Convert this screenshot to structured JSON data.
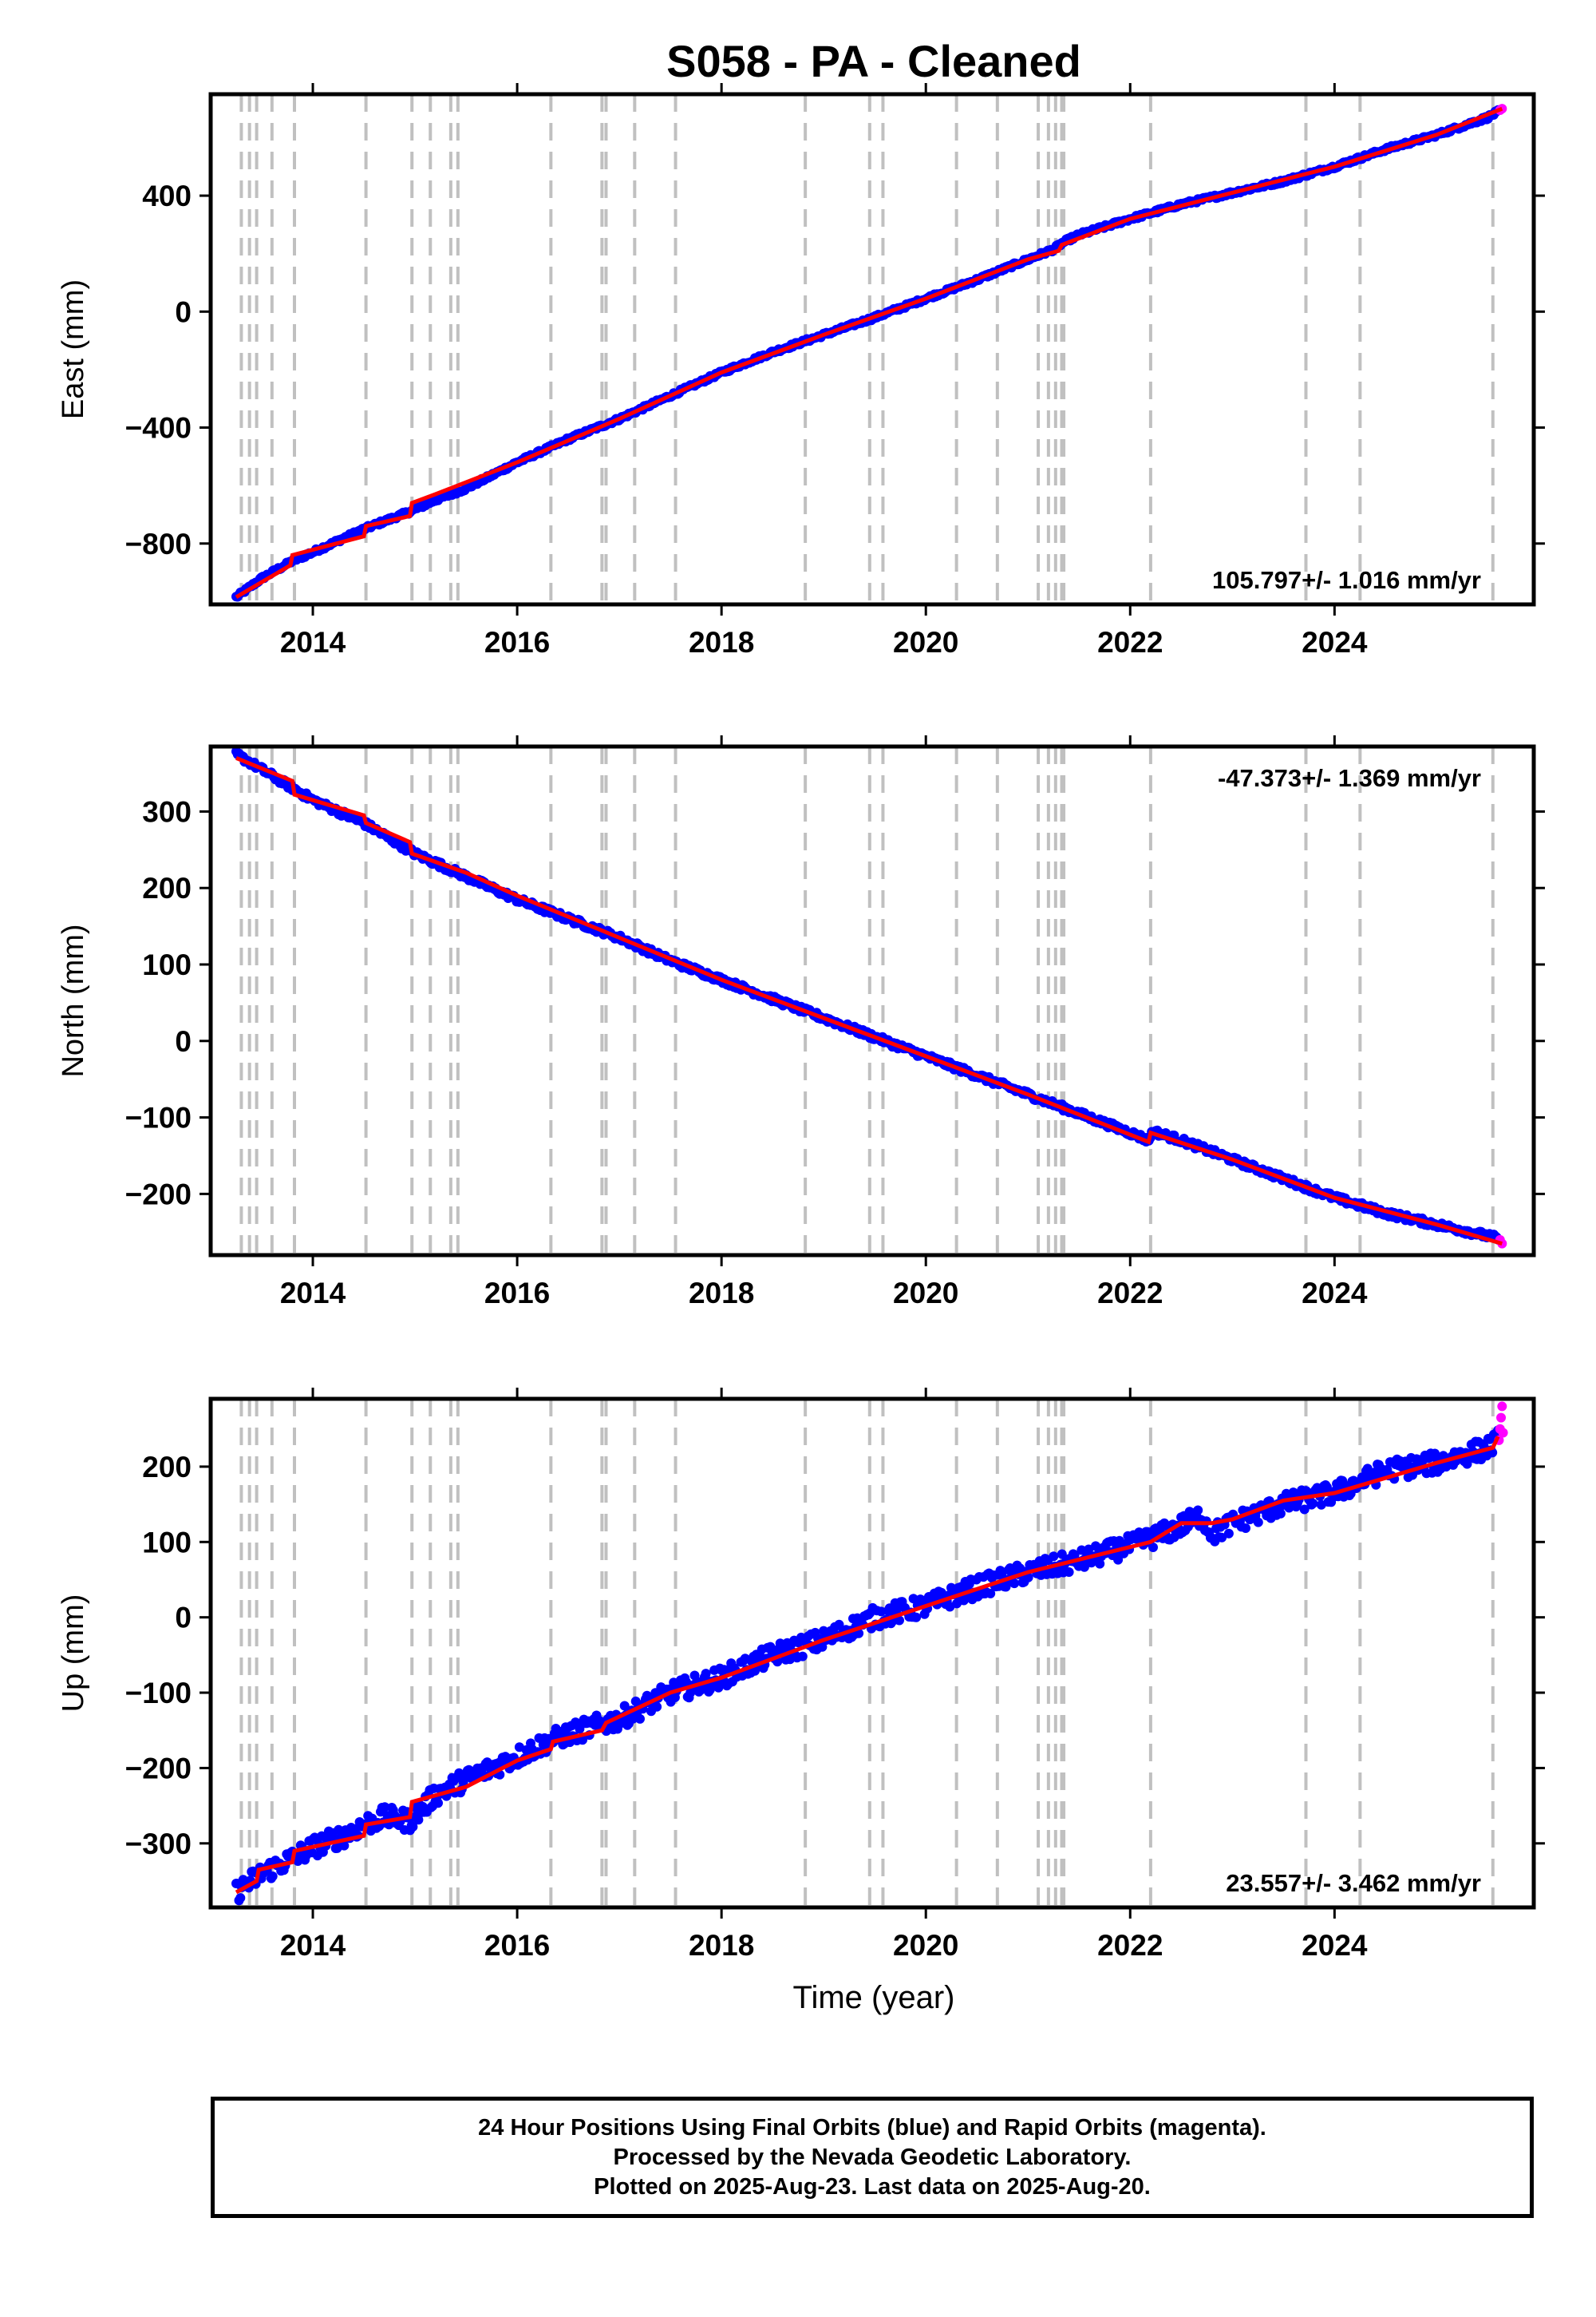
{
  "title": "S058  - PA - Cleaned",
  "xlabel": "Time (year)",
  "colors": {
    "final": "#0000ff",
    "rapid": "#ff00ff",
    "model": "#ff0000",
    "break": "#c0c0c0"
  },
  "footer": {
    "line1": "24 Hour Positions Using Final Orbits (blue) and Rapid Orbits (magenta).",
    "line2": "Processed by the Nevada Geodetic Laboratory.",
    "line3": "Plotted on 2025-Aug-23. Last data on 2025-Aug-20."
  },
  "chart_data": [
    {
      "type": "scatter",
      "title": "S058  - PA - Cleaned",
      "ylabel": "East (mm)",
      "xlim": [
        2013.0,
        2025.95
      ],
      "ylim": [
        -1010,
        750
      ],
      "x_ticks": [
        2014,
        2016,
        2018,
        2020,
        2022,
        2024
      ],
      "y_ticks": [
        -800,
        -400,
        0,
        400
      ],
      "rate_label": "105.797+/- 1.016 mm/yr",
      "rate_position": "bottom-right",
      "breaks": [
        2013.3,
        2013.38,
        2013.45,
        2013.6,
        2013.82,
        2014.52,
        2014.97,
        2015.15,
        2015.35,
        2015.42,
        2016.33,
        2016.83,
        2016.87,
        2017.15,
        2017.55,
        2018.82,
        2019.45,
        2019.58,
        2020.3,
        2020.7,
        2021.1,
        2021.2,
        2021.27,
        2021.33,
        2021.35,
        2022.2,
        2023.72,
        2024.25,
        2025.55
      ],
      "final_series": {
        "name": "Final Orbits",
        "x": [
          2013.25,
          2013.5,
          2013.8,
          2014.0,
          2014.5,
          2014.95,
          2015.2,
          2015.5,
          2016.0,
          2016.5,
          2017.0,
          2017.5,
          2018.0,
          2018.5,
          2019.0,
          2019.5,
          2020.0,
          2020.5,
          2021.0,
          2021.25,
          2021.35,
          2021.5,
          2022.0,
          2022.5,
          2023.0,
          2023.5,
          2024.0,
          2024.5,
          2025.0,
          2025.5,
          2025.6
        ],
        "values": [
          -985,
          -920,
          -860,
          -830,
          -750,
          -690,
          -650,
          -610,
          -520,
          -440,
          -370,
          -290,
          -210,
          -140,
          -80,
          -20,
          45,
          110,
          180,
          215,
          240,
          265,
          320,
          370,
          410,
          450,
          500,
          560,
          610,
          670,
          690
        ]
      },
      "rapid_series": {
        "name": "Rapid Orbits",
        "x": [
          2025.62,
          2025.64
        ],
        "values": [
          695,
          700
        ]
      },
      "model_series": {
        "name": "Model",
        "x": [
          2013.25,
          2013.78,
          2013.8,
          2014.5,
          2014.52,
          2014.95,
          2014.97,
          2015.2,
          2016.0,
          2017.0,
          2018.0,
          2019.0,
          2020.0,
          2021.0,
          2021.3,
          2021.33,
          2022.0,
          2023.0,
          2024.0,
          2025.0,
          2025.64
        ],
        "values": [
          -985,
          -875,
          -840,
          -775,
          -740,
          -705,
          -660,
          -630,
          -520,
          -370,
          -210,
          -80,
          45,
          180,
          210,
          230,
          320,
          410,
          500,
          610,
          700
        ]
      }
    },
    {
      "type": "scatter",
      "ylabel": "North (mm)",
      "xlim": [
        2013.0,
        2025.95
      ],
      "ylim": [
        -280,
        385
      ],
      "x_ticks": [
        2014,
        2016,
        2018,
        2020,
        2022,
        2024
      ],
      "y_ticks": [
        -200,
        -100,
        0,
        100,
        200,
        300
      ],
      "rate_label": "-47.373+/- 1.369 mm/yr",
      "rate_position": "top-right",
      "breaks": [
        2013.3,
        2013.38,
        2013.45,
        2013.6,
        2013.82,
        2014.52,
        2014.97,
        2015.15,
        2015.35,
        2015.42,
        2016.33,
        2016.83,
        2016.87,
        2017.15,
        2017.55,
        2018.82,
        2019.45,
        2019.58,
        2020.3,
        2020.7,
        2021.1,
        2021.2,
        2021.27,
        2021.33,
        2021.35,
        2022.2,
        2023.72,
        2024.25,
        2025.55
      ],
      "final_series": {
        "name": "Final Orbits",
        "x": [
          2013.25,
          2013.5,
          2014.0,
          2014.5,
          2015.0,
          2015.5,
          2016.0,
          2016.5,
          2017.0,
          2017.5,
          2018.0,
          2018.5,
          2019.0,
          2019.5,
          2020.0,
          2020.5,
          2021.0,
          2021.5,
          2022.0,
          2022.18,
          2022.22,
          2022.5,
          2023.0,
          2023.5,
          2024.0,
          2024.5,
          2025.0,
          2025.5,
          2025.6
        ],
        "values": [
          375,
          355,
          315,
          285,
          245,
          215,
          185,
          160,
          135,
          105,
          80,
          55,
          30,
          5,
          -20,
          -45,
          -70,
          -95,
          -120,
          -130,
          -118,
          -130,
          -155,
          -180,
          -205,
          -225,
          -240,
          -255,
          -258
        ]
      },
      "rapid_series": {
        "name": "Rapid Orbits",
        "x": [
          2025.62,
          2025.64
        ],
        "values": [
          -260,
          -265
        ]
      },
      "model_series": {
        "name": "Model",
        "x": [
          2013.25,
          2013.8,
          2013.82,
          2014.5,
          2014.52,
          2014.95,
          2014.97,
          2015.5,
          2016.0,
          2017.0,
          2018.0,
          2019.0,
          2020.0,
          2021.0,
          2022.18,
          2022.2,
          2023.0,
          2024.0,
          2025.0,
          2025.64
        ],
        "values": [
          370,
          340,
          322,
          295,
          285,
          260,
          245,
          220,
          190,
          135,
          80,
          30,
          -20,
          -70,
          -132,
          -120,
          -155,
          -205,
          -240,
          -265
        ]
      }
    },
    {
      "type": "scatter",
      "ylabel": "Up (mm)",
      "xlim": [
        2013.0,
        2025.95
      ],
      "ylim": [
        -385,
        290
      ],
      "x_ticks": [
        2014,
        2016,
        2018,
        2020,
        2022,
        2024
      ],
      "y_ticks": [
        -300,
        -200,
        -100,
        0,
        100,
        200
      ],
      "rate_label": "23.557+/- 3.462 mm/yr",
      "rate_position": "bottom-right",
      "breaks": [
        2013.3,
        2013.38,
        2013.45,
        2013.6,
        2013.82,
        2014.52,
        2014.97,
        2015.15,
        2015.35,
        2015.42,
        2016.33,
        2016.83,
        2016.87,
        2017.15,
        2017.55,
        2018.82,
        2019.45,
        2019.58,
        2020.3,
        2020.7,
        2021.1,
        2021.2,
        2021.27,
        2021.33,
        2021.35,
        2022.2,
        2023.72,
        2024.25,
        2025.55
      ],
      "final_series": {
        "name": "Final Orbits",
        "x": [
          2013.25,
          2013.5,
          2013.8,
          2014.0,
          2014.3,
          2014.5,
          2014.7,
          2014.95,
          2015.2,
          2015.5,
          2016.0,
          2016.3,
          2016.5,
          2017.0,
          2017.5,
          2018.0,
          2018.5,
          2019.0,
          2019.5,
          2020.0,
          2020.5,
          2021.0,
          2021.5,
          2022.0,
          2022.4,
          2022.7,
          2022.8,
          2023.0,
          2023.5,
          2024.0,
          2024.5,
          2025.0,
          2025.5,
          2025.6
        ],
        "values": [
          -365,
          -340,
          -320,
          -305,
          -290,
          -275,
          -265,
          -270,
          -235,
          -215,
          -185,
          -165,
          -155,
          -135,
          -100,
          -80,
          -50,
          -30,
          0,
          15,
          40,
          60,
          75,
          95,
          115,
          135,
          110,
          125,
          150,
          165,
          195,
          205,
          225,
          235
        ]
      },
      "rapid_series": {
        "name": "Rapid Orbits",
        "x": [
          2025.61,
          2025.62,
          2025.63,
          2025.64,
          2025.65
        ],
        "values": [
          235,
          250,
          265,
          280,
          245
        ]
      },
      "model_series": {
        "name": "Model",
        "x": [
          2013.25,
          2013.45,
          2013.47,
          2013.8,
          2013.82,
          2014.5,
          2014.52,
          2014.95,
          2014.97,
          2015.5,
          2016.0,
          2016.33,
          2016.35,
          2016.83,
          2016.87,
          2017.5,
          2018.0,
          2019.0,
          2020.0,
          2021.0,
          2022.2,
          2022.5,
          2022.8,
          2023.0,
          2023.5,
          2024.0,
          2025.0,
          2025.55,
          2025.6
        ],
        "values": [
          -365,
          -350,
          -335,
          -325,
          -310,
          -290,
          -275,
          -265,
          -245,
          -225,
          -190,
          -175,
          -165,
          -150,
          -140,
          -100,
          -80,
          -30,
          15,
          60,
          100,
          125,
          125,
          130,
          155,
          165,
          205,
          225,
          240
        ]
      }
    }
  ]
}
